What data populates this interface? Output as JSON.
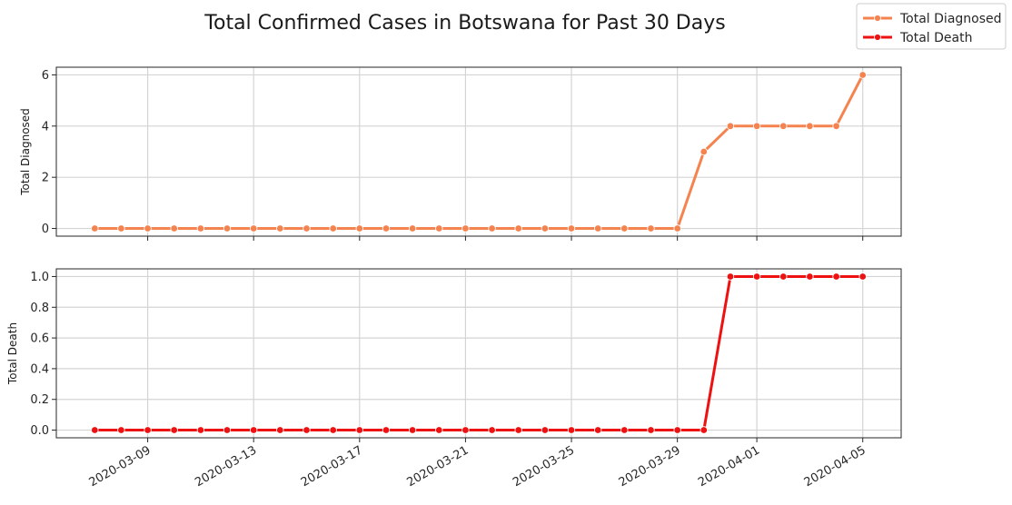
{
  "figure": {
    "title": "Total Confirmed Cases in Botswana for Past 30 Days"
  },
  "legend": {
    "placement": "top-right",
    "items": [
      {
        "label": "Total Diagnosed",
        "color": "#f5834f"
      },
      {
        "label": "Total Death",
        "color": "#ee1111"
      }
    ]
  },
  "chart_data": [
    {
      "type": "line",
      "ylabel": "Total Diagnosed",
      "ylim": [
        -0.3,
        6.3
      ],
      "yticks": [
        "0",
        "2",
        "4",
        "6"
      ],
      "grid": true,
      "series": [
        {
          "name": "Total Diagnosed",
          "color": "#f5834f",
          "x": [
            "2020-03-07",
            "2020-03-08",
            "2020-03-09",
            "2020-03-10",
            "2020-03-11",
            "2020-03-12",
            "2020-03-13",
            "2020-03-14",
            "2020-03-15",
            "2020-03-16",
            "2020-03-17",
            "2020-03-18",
            "2020-03-19",
            "2020-03-20",
            "2020-03-21",
            "2020-03-22",
            "2020-03-23",
            "2020-03-24",
            "2020-03-25",
            "2020-03-26",
            "2020-03-27",
            "2020-03-28",
            "2020-03-29",
            "2020-03-30",
            "2020-03-31",
            "2020-04-01",
            "2020-04-02",
            "2020-04-03",
            "2020-04-04",
            "2020-04-05"
          ],
          "values": [
            0,
            0,
            0,
            0,
            0,
            0,
            0,
            0,
            0,
            0,
            0,
            0,
            0,
            0,
            0,
            0,
            0,
            0,
            0,
            0,
            0,
            0,
            0,
            3,
            4,
            4,
            4,
            4,
            4,
            6
          ]
        }
      ]
    },
    {
      "type": "line",
      "ylabel": "Total Death",
      "ylim": [
        -0.05,
        1.05
      ],
      "yticks": [
        "0.0",
        "0.2",
        "0.4",
        "0.6",
        "0.8",
        "1.0"
      ],
      "xticks": [
        "2020-03-09",
        "2020-03-13",
        "2020-03-17",
        "2020-03-21",
        "2020-03-25",
        "2020-03-29",
        "2020-04-01",
        "2020-04-05"
      ],
      "grid": true,
      "series": [
        {
          "name": "Total Death",
          "color": "#ee1111",
          "x": [
            "2020-03-07",
            "2020-03-08",
            "2020-03-09",
            "2020-03-10",
            "2020-03-11",
            "2020-03-12",
            "2020-03-13",
            "2020-03-14",
            "2020-03-15",
            "2020-03-16",
            "2020-03-17",
            "2020-03-18",
            "2020-03-19",
            "2020-03-20",
            "2020-03-21",
            "2020-03-22",
            "2020-03-23",
            "2020-03-24",
            "2020-03-25",
            "2020-03-26",
            "2020-03-27",
            "2020-03-28",
            "2020-03-29",
            "2020-03-30",
            "2020-03-31",
            "2020-04-01",
            "2020-04-02",
            "2020-04-03",
            "2020-04-04",
            "2020-04-05"
          ],
          "values": [
            0,
            0,
            0,
            0,
            0,
            0,
            0,
            0,
            0,
            0,
            0,
            0,
            0,
            0,
            0,
            0,
            0,
            0,
            0,
            0,
            0,
            0,
            0,
            0,
            1,
            1,
            1,
            1,
            1,
            1
          ]
        }
      ]
    }
  ]
}
